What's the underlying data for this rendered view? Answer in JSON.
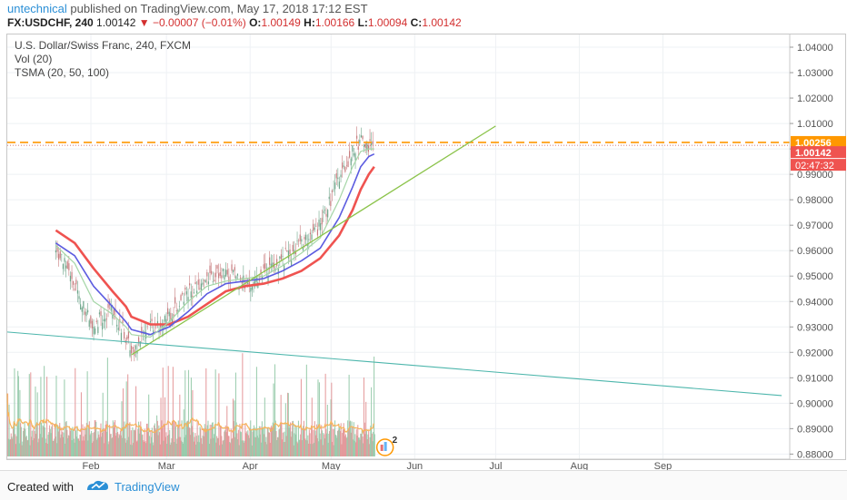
{
  "header": {
    "author": "untechnical",
    "published": " published on TradingView.com, May 17, 2018 17:12 EST",
    "symbol": "FX:USDCHF, 240",
    "last": "1.00142",
    "change": "−0.00007 (−0.01%)",
    "o_label": "O:",
    "o": "1.00149",
    "h_label": "H:",
    "h": "1.00166",
    "l_label": "L:",
    "l": "1.00094",
    "c_label": "C:",
    "c": "1.00142"
  },
  "legend": {
    "instrument": "U.S. Dollar/Swiss Franc, 240, FXCM",
    "volume": "Vol (20)",
    "tsma": "TSMA (20, 50, 100)"
  },
  "price_tags": {
    "resistance": "1.00256",
    "last": "1.00142",
    "countdown": "02:47:32"
  },
  "colors": {
    "up": "#8fc7a5",
    "down": "#e28f92",
    "sma20": "#a5d6a7",
    "sma50": "#5c5ce0",
    "sma100": "#ef5350",
    "trend": "#8bc34a",
    "teal_line": "#4db6ac",
    "resistance": "#ff9800",
    "vol_ma": "#f7b35b"
  },
  "badge": {
    "count": "2"
  },
  "footer": {
    "created": "Created with",
    "brand": "TradingView"
  },
  "chart_data": {
    "type": "line",
    "title": "U.S. Dollar/Swiss Franc, 240, FXCM",
    "ylim": [
      0.878,
      1.045
    ],
    "y_ticks": [
      "1.04000",
      "1.03000",
      "1.02000",
      "1.01000",
      "1.00000",
      "0.99000",
      "0.98000",
      "0.97000",
      "0.96000",
      "0.95000",
      "0.94000",
      "0.93000",
      "0.92000",
      "0.91000",
      "0.90000",
      "0.89000",
      "0.88000"
    ],
    "x_ticks": [
      "Feb",
      "Mar",
      "Apr",
      "May",
      "Jun",
      "Jul",
      "Aug",
      "Sep"
    ],
    "x": [
      "2018-01-19",
      "2018-01-26",
      "2018-02-02",
      "2018-02-09",
      "2018-02-14",
      "2018-02-16",
      "2018-02-23",
      "2018-03-02",
      "2018-03-09",
      "2018-03-16",
      "2018-03-23",
      "2018-03-30",
      "2018-04-06",
      "2018-04-13",
      "2018-04-20",
      "2018-04-27",
      "2018-05-04",
      "2018-05-09",
      "2018-05-12",
      "2018-05-15",
      "2018-05-17"
    ],
    "series": [
      {
        "name": "Price",
        "values": [
          0.962,
          0.945,
          0.931,
          0.937,
          0.926,
          0.919,
          0.93,
          0.934,
          0.943,
          0.95,
          0.951,
          0.947,
          0.951,
          0.957,
          0.962,
          0.97,
          0.989,
          0.999,
          1.003,
          1.0,
          1.001
        ]
      },
      {
        "name": "TSMA 20",
        "values": [
          0.962,
          0.955,
          0.94,
          0.935,
          0.93,
          0.927,
          0.926,
          0.932,
          0.94,
          0.946,
          0.948,
          0.949,
          0.95,
          0.954,
          0.959,
          0.965,
          0.98,
          0.993,
          0.999,
          1.0,
          1.0
        ]
      },
      {
        "name": "TSMA 50",
        "values": [
          0.963,
          0.958,
          0.946,
          0.938,
          0.932,
          0.929,
          0.927,
          0.93,
          0.936,
          0.943,
          0.947,
          0.948,
          0.949,
          0.952,
          0.956,
          0.961,
          0.973,
          0.985,
          0.993,
          0.997,
          0.998
        ]
      },
      {
        "name": "TSMA 100",
        "values": [
          0.968,
          0.963,
          0.953,
          0.944,
          0.938,
          0.934,
          0.931,
          0.931,
          0.934,
          0.939,
          0.944,
          0.946,
          0.947,
          0.949,
          0.952,
          0.957,
          0.966,
          0.976,
          0.984,
          0.99,
          0.993
        ]
      }
    ],
    "annotations": [
      {
        "type": "horizontal",
        "y": 1.00256
      },
      {
        "type": "trendline",
        "points": [
          [
            "2018-02-16",
            0.919
          ],
          [
            "2018-07-01",
            1.009
          ]
        ]
      },
      {
        "type": "trendline",
        "points": [
          [
            "2018-01-01",
            0.928
          ],
          [
            "2018-10-15",
            0.903
          ]
        ]
      }
    ],
    "volume": {
      "label": "Vol (20)"
    }
  }
}
